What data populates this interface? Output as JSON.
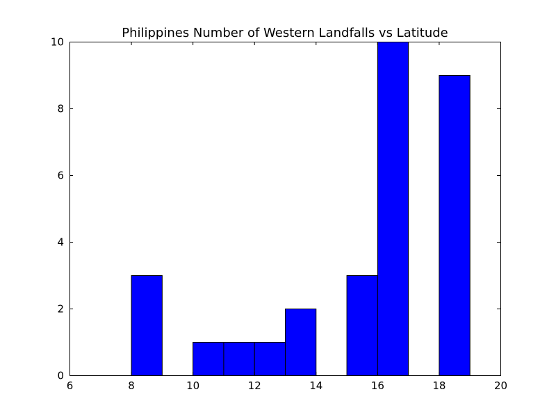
{
  "chart_data": {
    "type": "bar",
    "title": "Philippines Number of Western Landfalls vs Latitude",
    "xlabel": "",
    "ylabel": "",
    "xlim": [
      6,
      20
    ],
    "ylim": [
      0,
      10
    ],
    "xticks": [
      "6",
      "8",
      "10",
      "12",
      "14",
      "16",
      "18",
      "20"
    ],
    "yticks": [
      "0",
      "2",
      "4",
      "6",
      "8",
      "10"
    ],
    "grid": false,
    "legend": "none",
    "bar_color": "#0000ff",
    "edge_color": "#000000",
    "bins": [
      {
        "x0": 6.0,
        "x1": 7.0,
        "value": 0
      },
      {
        "x0": 7.0,
        "x1": 8.0,
        "value": 0
      },
      {
        "x0": 8.0,
        "x1": 9.0,
        "value": 3
      },
      {
        "x0": 9.0,
        "x1": 10.0,
        "value": 0
      },
      {
        "x0": 10.0,
        "x1": 11.0,
        "value": 1
      },
      {
        "x0": 11.0,
        "x1": 12.0,
        "value": 1
      },
      {
        "x0": 12.0,
        "x1": 13.0,
        "value": 1
      },
      {
        "x0": 13.0,
        "x1": 14.0,
        "value": 2
      },
      {
        "x0": 14.0,
        "x1": 15.0,
        "value": 0
      },
      {
        "x0": 15.0,
        "x1": 16.0,
        "value": 3
      },
      {
        "x0": 16.0,
        "x1": 17.0,
        "value": 10
      },
      {
        "x0": 17.0,
        "x1": 18.0,
        "value": 0
      },
      {
        "x0": 18.0,
        "x1": 19.0,
        "value": 9
      }
    ]
  }
}
